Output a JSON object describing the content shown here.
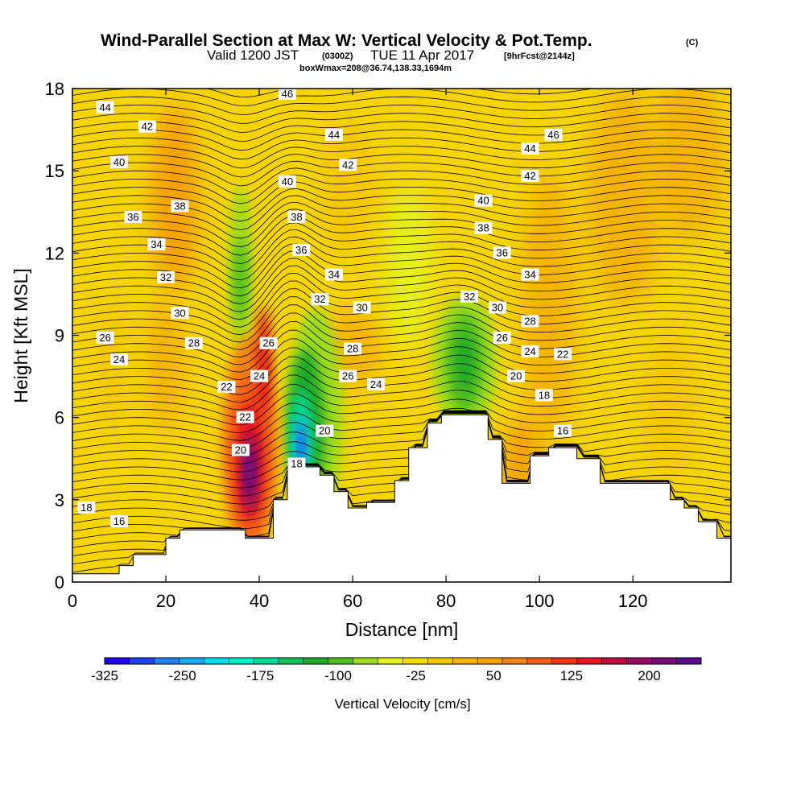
{
  "header": {
    "title_main": "Wind-Parallel Section at Max W: Vertical Velocity & Pot.Temp.",
    "title_mark": "(C)",
    "valid_prefix": "Valid 1200 JST",
    "valid_utc": "(0300Z)",
    "valid_date": "TUE 11 Apr 2017",
    "forecast_info": "[9hrFcst@2144z]",
    "box_info": "boxWmax=208@36.74,138.33,1694m"
  },
  "colorbar": {
    "label": "Vertical Velocity [cm/s]",
    "tick_labels": [
      "-325",
      "-250",
      "-175",
      "-100",
      "-25",
      "50",
      "125",
      "200"
    ],
    "colors": [
      "#1e00f5",
      "#1e41f5",
      "#1e82f5",
      "#14aaf5",
      "#00dcf0",
      "#00eec8",
      "#00dc96",
      "#14c35a",
      "#1eaa28",
      "#50be1e",
      "#a0dc1e",
      "#e6f01e",
      "#f5dc00",
      "#f5c800",
      "#f5b400",
      "#f5a000",
      "#f58214",
      "#f55f14",
      "#f53214",
      "#e6141e",
      "#c30a3c",
      "#9b0a64",
      "#780a78",
      "#5a0a8c"
    ]
  },
  "chart_data": {
    "type": "heatmap",
    "xlabel": "Distance [nm]",
    "ylabel": "Height [Kft MSL]",
    "xlim": [
      0,
      141
    ],
    "ylim": [
      0,
      18
    ],
    "xticks": [
      0,
      20,
      40,
      60,
      80,
      100,
      120
    ],
    "yticks": [
      0,
      3,
      6,
      9,
      12,
      15,
      18
    ],
    "colorbar_range": [
      -325,
      250
    ],
    "vertical_velocity_features": [
      {
        "x": 38,
        "y": 4.0,
        "value": 210
      },
      {
        "x": 49,
        "y": 5.0,
        "value": -300
      },
      {
        "x": 84,
        "y": 8.0,
        "value": -120
      },
      {
        "x": 36,
        "y": 11.0,
        "value": -80
      },
      {
        "x": 22,
        "y": 13.5,
        "value": 60
      }
    ],
    "terrain_profile": [
      [
        0,
        0.3
      ],
      [
        10,
        0.3
      ],
      [
        10,
        0.6
      ],
      [
        13,
        0.6
      ],
      [
        13,
        1.0
      ],
      [
        20,
        1.0
      ],
      [
        20,
        1.6
      ],
      [
        23,
        1.6
      ],
      [
        23,
        1.9
      ],
      [
        37,
        1.9
      ],
      [
        37,
        1.6
      ],
      [
        43,
        1.6
      ],
      [
        43,
        3.0
      ],
      [
        46,
        3.0
      ],
      [
        46,
        3.6
      ],
      [
        46,
        4.2
      ],
      [
        53,
        4.2
      ],
      [
        53,
        3.9
      ],
      [
        56,
        3.9
      ],
      [
        56,
        3.3
      ],
      [
        59,
        3.3
      ],
      [
        59,
        2.7
      ],
      [
        63,
        2.7
      ],
      [
        63,
        2.9
      ],
      [
        65,
        2.9
      ],
      [
        65,
        2.9
      ],
      [
        69,
        2.9
      ],
      [
        69,
        3.7
      ],
      [
        72,
        3.7
      ],
      [
        72,
        4.9
      ],
      [
        76,
        4.9
      ],
      [
        76,
        5.8
      ],
      [
        79,
        5.8
      ],
      [
        79,
        6.1
      ],
      [
        89,
        6.1
      ],
      [
        89,
        5.2
      ],
      [
        92,
        5.2
      ],
      [
        92,
        3.6
      ],
      [
        98,
        3.6
      ],
      [
        98,
        4.6
      ],
      [
        102,
        4.6
      ],
      [
        102,
        4.9
      ],
      [
        108,
        4.9
      ],
      [
        108,
        4.5
      ],
      [
        113,
        4.5
      ],
      [
        113,
        3.6
      ],
      [
        128,
        3.6
      ],
      [
        128,
        3.0
      ],
      [
        131,
        3.0
      ],
      [
        131,
        2.7
      ],
      [
        134,
        2.7
      ],
      [
        134,
        2.2
      ],
      [
        138,
        2.2
      ],
      [
        138,
        1.6
      ],
      [
        141,
        1.6
      ]
    ],
    "contour_labels": [
      {
        "text": "44",
        "x": 7,
        "y": 17.3
      },
      {
        "text": "46",
        "x": 46,
        "y": 17.8
      },
      {
        "text": "46",
        "x": 103,
        "y": 16.3
      },
      {
        "text": "42",
        "x": 16,
        "y": 16.6
      },
      {
        "text": "44",
        "x": 56,
        "y": 16.3
      },
      {
        "text": "44",
        "x": 98,
        "y": 15.8
      },
      {
        "text": "40",
        "x": 10,
        "y": 15.3
      },
      {
        "text": "42",
        "x": 59,
        "y": 15.2
      },
      {
        "text": "42",
        "x": 98,
        "y": 14.8
      },
      {
        "text": "40",
        "x": 46,
        "y": 14.6
      },
      {
        "text": "38",
        "x": 23,
        "y": 13.7
      },
      {
        "text": "40",
        "x": 88,
        "y": 13.9
      },
      {
        "text": "36",
        "x": 13,
        "y": 13.3
      },
      {
        "text": "38",
        "x": 48,
        "y": 13.3
      },
      {
        "text": "38",
        "x": 88,
        "y": 12.9
      },
      {
        "text": "34",
        "x": 18,
        "y": 12.3
      },
      {
        "text": "36",
        "x": 49,
        "y": 12.1
      },
      {
        "text": "36",
        "x": 92,
        "y": 12.0
      },
      {
        "text": "34",
        "x": 56,
        "y": 11.2
      },
      {
        "text": "34",
        "x": 98,
        "y": 11.2
      },
      {
        "text": "32",
        "x": 20,
        "y": 11.1
      },
      {
        "text": "32",
        "x": 53,
        "y": 10.3
      },
      {
        "text": "32",
        "x": 85,
        "y": 10.4
      },
      {
        "text": "30",
        "x": 62,
        "y": 10.0
      },
      {
        "text": "30",
        "x": 91,
        "y": 10.0
      },
      {
        "text": "30",
        "x": 23,
        "y": 9.8
      },
      {
        "text": "28",
        "x": 98,
        "y": 9.5
      },
      {
        "text": "26",
        "x": 7,
        "y": 8.9
      },
      {
        "text": "28",
        "x": 26,
        "y": 8.7
      },
      {
        "text": "26",
        "x": 42,
        "y": 8.7
      },
      {
        "text": "26",
        "x": 92,
        "y": 8.9
      },
      {
        "text": "28",
        "x": 60,
        "y": 8.5
      },
      {
        "text": "24",
        "x": 98,
        "y": 8.4
      },
      {
        "text": "22",
        "x": 105,
        "y": 8.3
      },
      {
        "text": "24",
        "x": 10,
        "y": 8.1
      },
      {
        "text": "24",
        "x": 40,
        "y": 7.5
      },
      {
        "text": "26",
        "x": 59,
        "y": 7.5
      },
      {
        "text": "20",
        "x": 95,
        "y": 7.5
      },
      {
        "text": "24",
        "x": 65,
        "y": 7.2
      },
      {
        "text": "22",
        "x": 33,
        "y": 7.1
      },
      {
        "text": "18",
        "x": 101,
        "y": 6.8
      },
      {
        "text": "22",
        "x": 37,
        "y": 6.0
      },
      {
        "text": "20",
        "x": 54,
        "y": 5.5
      },
      {
        "text": "16",
        "x": 105,
        "y": 5.5
      },
      {
        "text": "20",
        "x": 36,
        "y": 4.8
      },
      {
        "text": "18",
        "x": 48,
        "y": 4.3
      },
      {
        "text": "18",
        "x": 3,
        "y": 2.7
      },
      {
        "text": "16",
        "x": 10,
        "y": 2.2
      }
    ]
  }
}
